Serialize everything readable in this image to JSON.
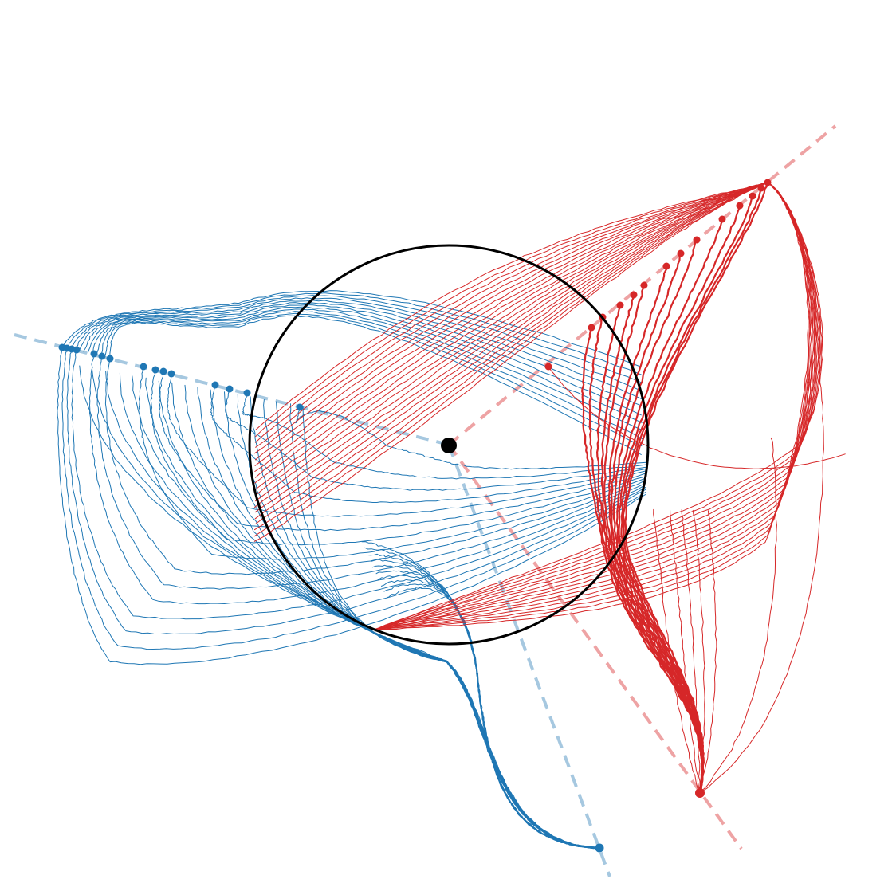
{
  "figure": {
    "colors": {
      "blue": "#1f77b4",
      "blue_reference": "#a6c8e0",
      "red": "#d62728",
      "red_reference": "#eea3a4",
      "circle": "#000000",
      "origin": "#000000"
    },
    "legend": "none",
    "axes": "hidden",
    "grid": false
  }
}
